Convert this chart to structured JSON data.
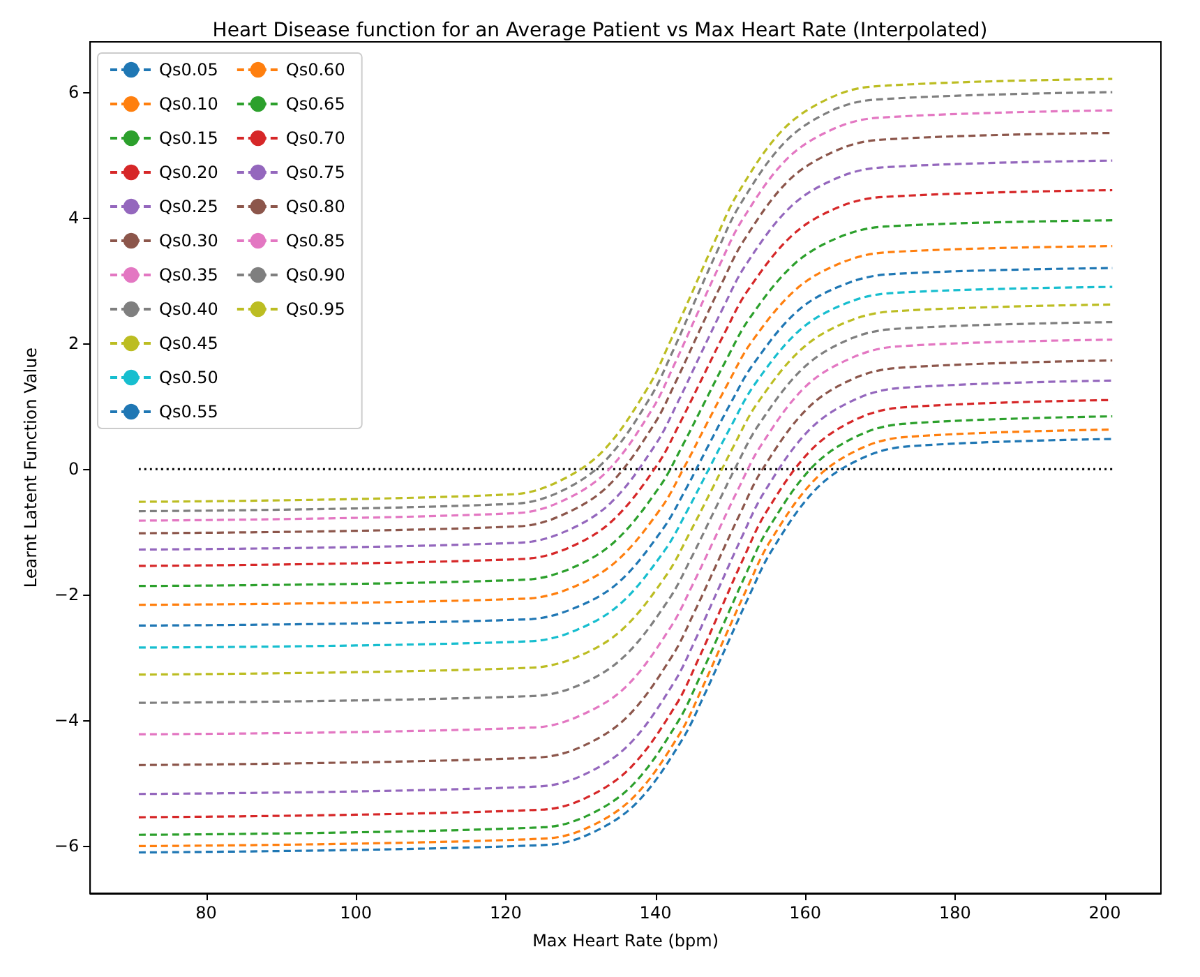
{
  "chart_data": {
    "type": "line",
    "title": "Heart Disease function for an Average Patient vs Max Heart Rate (Interpolated)",
    "xlabel": "Max Heart Rate (bpm)",
    "ylabel": "Learnt Latent Function Value",
    "xlim": [
      64.5,
      207.5
    ],
    "ylim": [
      -6.75,
      6.8
    ],
    "xticks": [
      80,
      100,
      120,
      140,
      160,
      180,
      200
    ],
    "yticks": [
      -6,
      -4,
      -2,
      0,
      2,
      4,
      6
    ],
    "grid": false,
    "legend": "top left",
    "line_style": "dashed",
    "marker": "none",
    "series": [
      {
        "name": "Qs0.05",
        "color": "#1f77b4",
        "x": [
          71,
          125.5,
          131.5,
          137.5,
          143.5,
          146.5,
          149.5,
          152.5,
          155.5,
          161.5,
          167.5,
          173.5,
          201
        ],
        "values": [
          -6.1,
          -5.98,
          -5.79,
          -5.31,
          -4.32,
          -3.6,
          -2.81,
          -2.02,
          -1.3,
          -0.31,
          0.17,
          0.36,
          0.48
        ]
      },
      {
        "name": "Qs0.10",
        "color": "#ff7f0e",
        "x": [
          71,
          125.25,
          131.25,
          137.25,
          143.25,
          146.25,
          149.25,
          152.25,
          155.25,
          161.25,
          167.25,
          173.25,
          201
        ],
        "values": [
          -6.0,
          -5.88,
          -5.69,
          -5.2,
          -4.21,
          -3.48,
          -2.68,
          -1.89,
          -1.16,
          -0.17,
          0.32,
          0.51,
          0.63
        ]
      },
      {
        "name": "Qs0.15",
        "color": "#2ca02c",
        "x": [
          71,
          125,
          131,
          137,
          143,
          146,
          149,
          152,
          155,
          161,
          167,
          173,
          201
        ],
        "values": [
          -5.82,
          -5.7,
          -5.51,
          -5.02,
          -4.02,
          -3.29,
          -2.49,
          -1.69,
          -0.96,
          0.04,
          0.53,
          0.72,
          0.84
        ]
      },
      {
        "name": "Qs0.20",
        "color": "#d62728",
        "x": [
          71,
          124.75,
          130.75,
          136.75,
          142.75,
          145.75,
          148.75,
          151.75,
          154.75,
          160.75,
          166.75,
          172.75,
          201
        ],
        "values": [
          -5.54,
          -5.42,
          -5.23,
          -4.74,
          -3.75,
          -3.02,
          -2.22,
          -1.42,
          -0.69,
          0.3,
          0.79,
          0.98,
          1.1
        ]
      },
      {
        "name": "Qs0.25",
        "color": "#9467bd",
        "x": [
          71,
          124.5,
          130.5,
          136.5,
          142.5,
          145.5,
          148.5,
          151.5,
          154.5,
          160.5,
          166.5,
          172.5,
          201
        ],
        "values": [
          -5.17,
          -5.05,
          -4.86,
          -4.38,
          -3.39,
          -2.67,
          -1.88,
          -1.09,
          -0.37,
          0.62,
          1.1,
          1.29,
          1.41
        ]
      },
      {
        "name": "Qs0.30",
        "color": "#8c564b",
        "x": [
          71,
          124.25,
          130.25,
          136.25,
          142.25,
          145.25,
          148.25,
          151.25,
          154.25,
          160.25,
          166.25,
          172.25,
          201
        ],
        "values": [
          -4.71,
          -4.59,
          -4.41,
          -3.94,
          -2.97,
          -2.26,
          -1.49,
          -0.72,
          -0.01,
          0.96,
          1.43,
          1.61,
          1.73
        ]
      },
      {
        "name": "Qs0.35",
        "color": "#e377c2",
        "x": [
          71,
          124,
          130,
          136,
          142,
          145,
          148,
          151,
          154,
          160,
          166,
          172,
          201
        ],
        "values": [
          -4.22,
          -4.11,
          -3.92,
          -3.47,
          -2.52,
          -1.83,
          -1.08,
          -0.33,
          0.36,
          1.31,
          1.76,
          1.95,
          2.06
        ]
      },
      {
        "name": "Qs0.40",
        "color": "#7f7f7f",
        "x": [
          71,
          123.75,
          129.75,
          135.75,
          141.75,
          144.75,
          147.75,
          150.75,
          153.75,
          159.75,
          165.75,
          171.75,
          201
        ],
        "values": [
          -3.72,
          -3.61,
          -3.44,
          -2.99,
          -2.08,
          -1.42,
          -0.69,
          0.04,
          0.7,
          1.61,
          2.06,
          2.23,
          2.34
        ]
      },
      {
        "name": "Qs0.45",
        "color": "#bcbd22",
        "x": [
          71,
          123.5,
          129.5,
          135.5,
          141.5,
          144.5,
          147.5,
          150.5,
          153.5,
          159.5,
          165.5,
          171.5,
          201
        ],
        "values": [
          -3.27,
          -3.16,
          -2.99,
          -2.56,
          -1.68,
          -1.03,
          -0.33,
          0.38,
          1.03,
          1.91,
          2.34,
          2.51,
          2.62
        ]
      },
      {
        "name": "Qs0.50",
        "color": "#17becf",
        "x": [
          71,
          123.25,
          129.25,
          135.25,
          141.25,
          144.25,
          147.25,
          150.25,
          153.25,
          159.25,
          165.25,
          171.25,
          201
        ],
        "values": [
          -2.84,
          -2.74,
          -2.57,
          -2.15,
          -1.29,
          -0.66,
          0.03,
          0.72,
          1.35,
          2.21,
          2.63,
          2.8,
          2.9
        ]
      },
      {
        "name": "Qs0.55",
        "color": "#1f77b4",
        "x": [
          71,
          123,
          129,
          135,
          141,
          144,
          147,
          150,
          153,
          159,
          165,
          171,
          201
        ],
        "values": [
          -2.49,
          -2.39,
          -2.22,
          -1.81,
          -0.95,
          -0.33,
          0.36,
          1.04,
          1.66,
          2.52,
          2.93,
          3.1,
          3.2
        ]
      },
      {
        "name": "Qs0.60",
        "color": "#ff7f0e",
        "x": [
          71,
          122.75,
          128.75,
          134.75,
          140.75,
          143.75,
          146.75,
          149.75,
          152.75,
          158.75,
          164.75,
          170.75,
          201
        ],
        "values": [
          -2.16,
          -2.06,
          -1.89,
          -1.47,
          -0.62,
          0.01,
          0.7,
          1.38,
          2.01,
          2.86,
          3.28,
          3.45,
          3.55
        ]
      },
      {
        "name": "Qs0.65",
        "color": "#2ca02c",
        "x": [
          71,
          122.5,
          128.5,
          134.5,
          140.5,
          143.5,
          146.5,
          149.5,
          152.5,
          158.5,
          164.5,
          170.5,
          201
        ],
        "values": [
          -1.86,
          -1.76,
          -1.59,
          -1.16,
          -0.29,
          0.35,
          1.05,
          1.75,
          2.39,
          3.26,
          3.69,
          3.86,
          3.96
        ]
      },
      {
        "name": "Qs0.70",
        "color": "#d62728",
        "x": [
          71,
          122.25,
          128.25,
          134.25,
          140.25,
          143.25,
          146.25,
          149.25,
          152.25,
          158.25,
          164.25,
          170.25,
          201
        ],
        "values": [
          -1.54,
          -1.43,
          -1.26,
          -0.82,
          0.07,
          0.73,
          1.45,
          2.17,
          2.83,
          3.72,
          4.16,
          4.33,
          4.44
        ]
      },
      {
        "name": "Qs0.75",
        "color": "#9467bd",
        "x": [
          71,
          122,
          128,
          134,
          140,
          143,
          146,
          149,
          152,
          158,
          164,
          170,
          201
        ],
        "values": [
          -1.28,
          -1.17,
          -0.99,
          -0.54,
          0.39,
          1.07,
          1.82,
          2.56,
          3.24,
          4.17,
          4.62,
          4.8,
          4.91
        ]
      },
      {
        "name": "Qs0.80",
        "color": "#8c564b",
        "x": [
          71,
          121.75,
          127.75,
          133.75,
          139.75,
          142.75,
          145.75,
          148.75,
          151.75,
          157.75,
          163.75,
          169.75,
          201
        ],
        "values": [
          -1.02,
          -0.91,
          -0.72,
          -0.26,
          0.7,
          1.4,
          2.17,
          2.93,
          3.63,
          4.59,
          5.05,
          5.24,
          5.35
        ]
      },
      {
        "name": "Qs0.85",
        "color": "#e377c2",
        "x": [
          71,
          121.5,
          127.5,
          133.5,
          139.5,
          142.5,
          145.5,
          148.5,
          151.5,
          157.5,
          163.5,
          169.5,
          201
        ],
        "values": [
          -0.82,
          -0.7,
          -0.51,
          -0.04,
          0.94,
          1.66,
          2.45,
          3.23,
          3.95,
          4.93,
          5.4,
          5.59,
          5.71
        ]
      },
      {
        "name": "Qs0.90",
        "color": "#7f7f7f",
        "x": [
          71,
          121.25,
          127.25,
          133.25,
          139.25,
          142.25,
          145.25,
          148.25,
          151.25,
          157.25,
          163.25,
          169.25,
          201
        ],
        "values": [
          -0.67,
          -0.55,
          -0.36,
          0.13,
          1.13,
          1.86,
          2.67,
          3.47,
          4.2,
          5.2,
          5.69,
          5.88,
          6.0
        ]
      },
      {
        "name": "Qs0.95",
        "color": "#bcbd22",
        "x": [
          71,
          121,
          127,
          133,
          139,
          142,
          145,
          148,
          151,
          157,
          163,
          169,
          201
        ],
        "values": [
          -0.52,
          -0.4,
          -0.2,
          0.29,
          1.3,
          2.04,
          2.84,
          3.65,
          4.39,
          5.4,
          5.89,
          6.09,
          6.21
        ]
      },
      {
        "type": "line",
        "color": "#000000",
        "line_style": "dotted",
        "x": [
          71,
          201
        ],
        "values": [
          0,
          0
        ]
      }
    ]
  }
}
